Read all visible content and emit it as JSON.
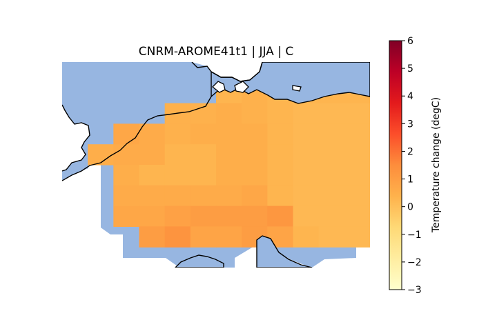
{
  "chart_data": {
    "type": "heatmap",
    "title": "CNRM-AROME41t1 | JJA | C",
    "colorbar": {
      "label": "Temperature change (degC)",
      "range": [
        -3,
        6
      ],
      "ticks": [
        -3,
        -2,
        -1,
        0,
        1,
        2,
        3,
        4,
        5,
        6
      ],
      "tick_labels": [
        "−3",
        "−2",
        "−1",
        "0",
        "1",
        "2",
        "3",
        "4",
        "5",
        "6"
      ],
      "colormap": "YlOrRd",
      "colormap_stops": [
        "#ffffcc",
        "#ffeda0",
        "#fed976",
        "#feb24c",
        "#fd8d3c",
        "#fc4e2a",
        "#e31a1c",
        "#bd0026",
        "#800026"
      ]
    },
    "map": {
      "ocean_color": "#97b6e1",
      "coastline_color": "#000000",
      "region": "Central Europe (North Sea, Baltic, Alps, Adriatic)"
    },
    "grid": {
      "columns": 12,
      "rows": 10,
      "values": [
        [
          null,
          null,
          null,
          null,
          null,
          null,
          null,
          null,
          null,
          null,
          null,
          null
        ],
        [
          null,
          null,
          null,
          null,
          null,
          null,
          0.3,
          0.4,
          0.3,
          0.3,
          0.3,
          0.3
        ],
        [
          null,
          null,
          null,
          null,
          0.4,
          0.4,
          0.5,
          0.4,
          0.3,
          0.2,
          0.2,
          0.2
        ],
        [
          null,
          null,
          0.7,
          0.6,
          0.4,
          0.5,
          0.5,
          0.5,
          0.3,
          0.2,
          0.2,
          0.2
        ],
        [
          null,
          0.5,
          0.6,
          0.6,
          0.3,
          0.3,
          0.5,
          0.5,
          0.3,
          0.2,
          0.2,
          0.2
        ],
        [
          null,
          null,
          0.5,
          0.3,
          0.3,
          0.3,
          0.5,
          0.5,
          0.3,
          0.2,
          0.2,
          0.2
        ],
        [
          null,
          null,
          0.6,
          0.6,
          0.6,
          0.6,
          0.6,
          0.7,
          0.3,
          0.2,
          0.2,
          0.2
        ],
        [
          null,
          null,
          0.7,
          0.7,
          0.9,
          1.0,
          1.0,
          1.0,
          1.2,
          0.2,
          0.2,
          0.2
        ],
        [
          null,
          null,
          null,
          1.0,
          1.3,
          0.8,
          0.8,
          1.0,
          0.8,
          0.3,
          0.2,
          0.2
        ],
        [
          null,
          null,
          null,
          null,
          null,
          null,
          null,
          null,
          null,
          null,
          null,
          null
        ]
      ]
    }
  }
}
